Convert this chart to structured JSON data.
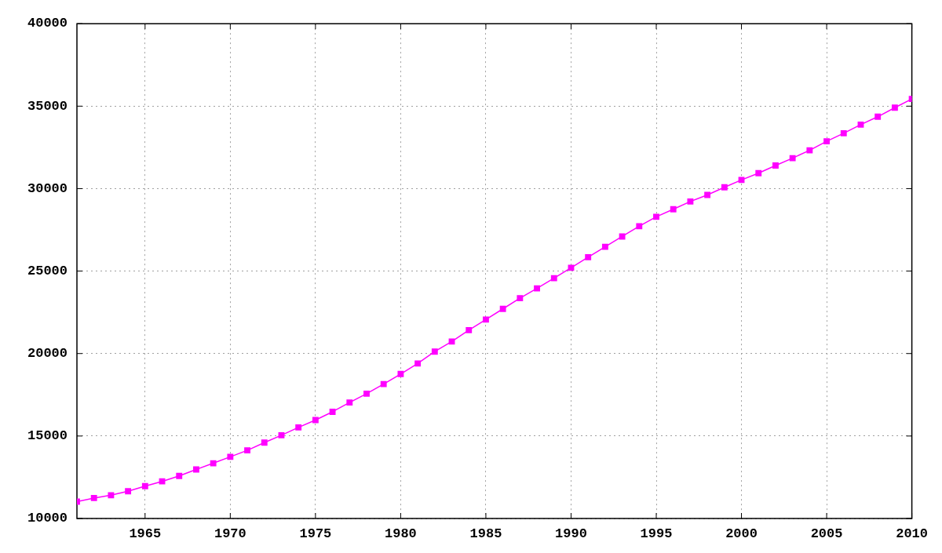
{
  "chart_data": {
    "type": "line",
    "x": [
      1961,
      1962,
      1963,
      1964,
      1965,
      1966,
      1967,
      1968,
      1969,
      1970,
      1971,
      1972,
      1973,
      1974,
      1975,
      1976,
      1977,
      1978,
      1979,
      1980,
      1981,
      1982,
      1983,
      1984,
      1985,
      1986,
      1987,
      1988,
      1989,
      1990,
      1991,
      1992,
      1993,
      1994,
      1995,
      1996,
      1997,
      1998,
      1999,
      2000,
      2001,
      2002,
      2003,
      2004,
      2005,
      2006,
      2007,
      2008,
      2009,
      2010
    ],
    "values": [
      11020,
      11240,
      11410,
      11650,
      11960,
      12250,
      12580,
      12970,
      13350,
      13740,
      14130,
      14600,
      15050,
      15520,
      15970,
      16470,
      17030,
      17570,
      18150,
      18760,
      19400,
      20120,
      20730,
      21420,
      22060,
      22710,
      23360,
      23950,
      24570,
      25200,
      25840,
      26470,
      27100,
      27720,
      28290,
      28750,
      29220,
      29620,
      30080,
      30530,
      30940,
      31400,
      31850,
      32320,
      32870,
      33360,
      33880,
      34360,
      34910,
      35440
    ],
    "color": "#ff00ff",
    "xlim": [
      1961,
      2010
    ],
    "xticks": [
      1965,
      1970,
      1975,
      1980,
      1985,
      1990,
      1995,
      2000,
      2005,
      2010
    ],
    "ylim": [
      10000,
      40000
    ],
    "yticks": [
      10000,
      15000,
      20000,
      25000,
      30000,
      35000,
      40000
    ],
    "grid": true,
    "marker": "square",
    "line_style": "solid"
  }
}
